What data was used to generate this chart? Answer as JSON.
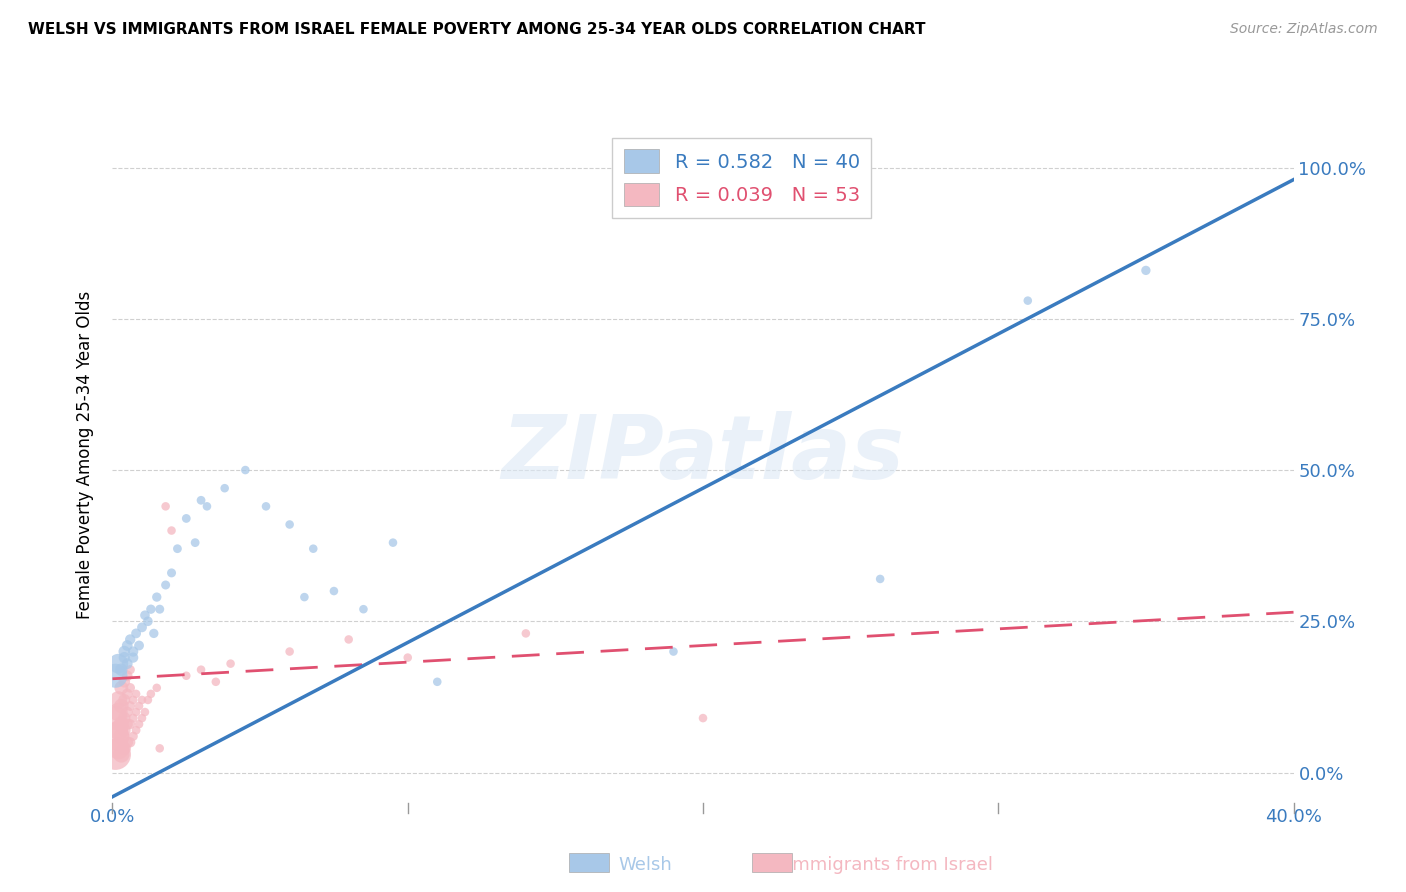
{
  "title": "WELSH VS IMMIGRANTS FROM ISRAEL FEMALE POVERTY AMONG 25-34 YEAR OLDS CORRELATION CHART",
  "source": "Source: ZipAtlas.com",
  "ylabel": "Female Poverty Among 25-34 Year Olds",
  "xlim": [
    0.0,
    0.4
  ],
  "ylim": [
    -0.05,
    1.1
  ],
  "background_color": "#ffffff",
  "watermark": "ZIPatlas",
  "welsh_color": "#a8c8e8",
  "welsh_line_color": "#3a7bbf",
  "israel_color": "#f4b8c1",
  "israel_line_color": "#e05070",
  "welsh_R": 0.582,
  "welsh_N": 40,
  "israel_R": 0.039,
  "israel_N": 53,
  "yticks": [
    0.0,
    0.25,
    0.5,
    0.75,
    1.0
  ],
  "ytick_labels_right": [
    "0.0%",
    "25.0%",
    "50.0%",
    "75.0%",
    "100.0%"
  ],
  "xticks": [
    0.0,
    0.1,
    0.2,
    0.3,
    0.4
  ],
  "xtick_labels": [
    "0.0%",
    "",
    "",
    "",
    "40.0%"
  ],
  "welsh_line_x0": 0.0,
  "welsh_line_y0": -0.04,
  "welsh_line_x1": 0.4,
  "welsh_line_y1": 0.98,
  "israel_line_x0": 0.0,
  "israel_line_y0": 0.155,
  "israel_line_x1": 0.4,
  "israel_line_y1": 0.265,
  "welsh_x": [
    0.001,
    0.002,
    0.003,
    0.004,
    0.004,
    0.005,
    0.005,
    0.006,
    0.007,
    0.007,
    0.008,
    0.009,
    0.01,
    0.011,
    0.012,
    0.013,
    0.014,
    0.015,
    0.016,
    0.018,
    0.02,
    0.022,
    0.025,
    0.028,
    0.03,
    0.032,
    0.038,
    0.045,
    0.052,
    0.06,
    0.065,
    0.068,
    0.075,
    0.085,
    0.095,
    0.11,
    0.19,
    0.26,
    0.31,
    0.35
  ],
  "welsh_y": [
    0.16,
    0.18,
    0.17,
    0.2,
    0.19,
    0.21,
    0.18,
    0.22,
    0.19,
    0.2,
    0.23,
    0.21,
    0.24,
    0.26,
    0.25,
    0.27,
    0.23,
    0.29,
    0.27,
    0.31,
    0.33,
    0.37,
    0.42,
    0.38,
    0.45,
    0.44,
    0.47,
    0.5,
    0.44,
    0.41,
    0.29,
    0.37,
    0.3,
    0.27,
    0.38,
    0.15,
    0.2,
    0.32,
    0.78,
    0.83
  ],
  "welsh_sizes": [
    300,
    200,
    80,
    70,
    65,
    60,
    60,
    55,
    55,
    55,
    50,
    50,
    50,
    48,
    48,
    45,
    45,
    45,
    42,
    42,
    42,
    40,
    40,
    40,
    40,
    38,
    38,
    38,
    38,
    38,
    38,
    38,
    38,
    38,
    38,
    38,
    38,
    38,
    38,
    45
  ],
  "israel_x": [
    0.001,
    0.001,
    0.001,
    0.002,
    0.002,
    0.002,
    0.002,
    0.003,
    0.003,
    0.003,
    0.003,
    0.003,
    0.004,
    0.004,
    0.004,
    0.004,
    0.004,
    0.005,
    0.005,
    0.005,
    0.005,
    0.005,
    0.006,
    0.006,
    0.006,
    0.006,
    0.006,
    0.007,
    0.007,
    0.007,
    0.008,
    0.008,
    0.008,
    0.009,
    0.009,
    0.01,
    0.01,
    0.011,
    0.012,
    0.013,
    0.015,
    0.016,
    0.018,
    0.02,
    0.025,
    0.03,
    0.035,
    0.04,
    0.06,
    0.08,
    0.1,
    0.14,
    0.2
  ],
  "israel_y": [
    0.03,
    0.06,
    0.09,
    0.04,
    0.07,
    0.1,
    0.12,
    0.03,
    0.06,
    0.08,
    0.11,
    0.14,
    0.04,
    0.07,
    0.09,
    0.12,
    0.15,
    0.05,
    0.08,
    0.1,
    0.13,
    0.16,
    0.05,
    0.08,
    0.11,
    0.14,
    0.17,
    0.06,
    0.09,
    0.12,
    0.07,
    0.1,
    0.13,
    0.08,
    0.11,
    0.09,
    0.12,
    0.1,
    0.12,
    0.13,
    0.14,
    0.04,
    0.44,
    0.4,
    0.16,
    0.17,
    0.15,
    0.18,
    0.2,
    0.22,
    0.19,
    0.23,
    0.09
  ],
  "israel_sizes": [
    500,
    400,
    300,
    250,
    200,
    180,
    160,
    140,
    130,
    120,
    110,
    100,
    90,
    85,
    80,
    75,
    70,
    70,
    65,
    62,
    60,
    58,
    55,
    52,
    50,
    48,
    45,
    45,
    42,
    40,
    40,
    38,
    38,
    38,
    38,
    38,
    38,
    38,
    38,
    38,
    38,
    38,
    38,
    38,
    38,
    38,
    38,
    38,
    38,
    38,
    38,
    38,
    38
  ]
}
